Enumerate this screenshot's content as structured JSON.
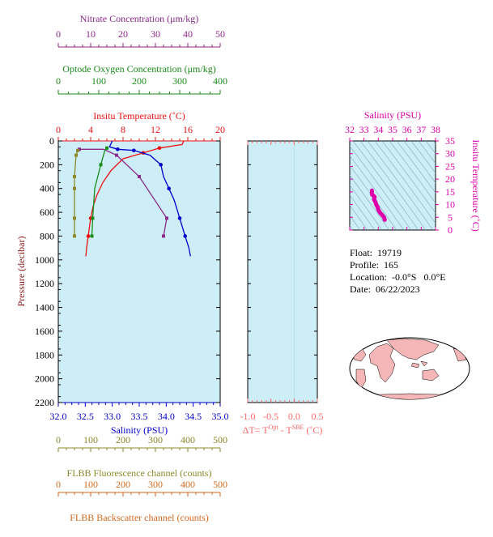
{
  "colors": {
    "nitrate": "#8b2a8b",
    "oxygen": "#1a8a1a",
    "temperature": "#ee1111",
    "salinity": "#0000cc",
    "fluorescence": "#8a8a2a",
    "backscatter": "#d2691e",
    "delta": "#ff6666",
    "ts": "#dd00aa",
    "panel": "#cdeef7",
    "land": "#f4b6b6"
  },
  "info": {
    "float_label": "Float:",
    "float_value": "19719",
    "profile_label": "Profile:",
    "profile_value": "165",
    "location_label": "Location:",
    "location_value": "-0.0°S   0.0°E",
    "date_label": "Date:",
    "date_value": "06/22/2023"
  },
  "chart_data": [
    {
      "type": "line",
      "id": "main-profile",
      "ylabel": "Pressure (decibar)",
      "ylim": [
        2200,
        0
      ],
      "yticks": [
        0,
        200,
        400,
        600,
        800,
        1000,
        1200,
        1400,
        1600,
        1800,
        2000,
        2200
      ],
      "axes": {
        "nitrate": {
          "label": "Nitrate Concentration (μm/kg)",
          "lim": [
            0,
            50
          ],
          "ticks": [
            "0",
            "10",
            "20",
            "30",
            "40",
            "50"
          ]
        },
        "oxygen": {
          "label": "Optode Oxygen Concentration (μm/kg)",
          "lim": [
            0,
            400
          ],
          "ticks": [
            "0",
            "100",
            "200",
            "300",
            "400"
          ]
        },
        "temperature": {
          "label": "Insitu Temperature (˚C)",
          "lim": [
            0,
            20
          ],
          "ticks": [
            "0",
            "4",
            "8",
            "12",
            "16",
            "20"
          ]
        },
        "salinity": {
          "label": "Salinity (PSU)",
          "lim": [
            32.0,
            35.0
          ],
          "ticks": [
            "32.0",
            "32.5",
            "33.0",
            "33.5",
            "34.0",
            "34.5",
            "35.0"
          ]
        },
        "fluorescence": {
          "label": "FLBB Fluorescence channel (counts)",
          "lim": [
            0,
            500
          ],
          "ticks": [
            "0",
            "100",
            "200",
            "300",
            "400",
            "500"
          ]
        },
        "backscatter": {
          "label": "FLBB Backscatter channel (counts)",
          "lim": [
            0,
            500
          ],
          "ticks": [
            "0",
            "100",
            "200",
            "300",
            "400",
            "500"
          ]
        }
      },
      "series": [
        {
          "name": "Insitu Temperature",
          "axis": "temperature",
          "x": [
            15.5,
            15.3,
            12.5,
            10.5,
            8.0,
            6.5,
            5.5,
            4.8,
            4.3,
            4.0,
            3.7,
            3.5,
            3.4
          ],
          "y": [
            0,
            30,
            60,
            100,
            150,
            250,
            350,
            450,
            550,
            650,
            800,
            900,
            970
          ],
          "markers": [
            60,
            100,
            650,
            800
          ]
        },
        {
          "name": "Salinity",
          "axis": "salinity",
          "x": [
            33.0,
            32.95,
            33.1,
            33.4,
            33.7,
            33.9,
            33.95,
            34.05,
            34.15,
            34.25,
            34.35,
            34.42,
            34.45
          ],
          "y": [
            0,
            50,
            70,
            80,
            120,
            200,
            300,
            400,
            500,
            650,
            800,
            900,
            970
          ],
          "markers": [
            70,
            80,
            200,
            400,
            650,
            800
          ]
        },
        {
          "name": "Nitrate Concentration",
          "axis": "nitrate",
          "x": [
            6.5,
            14.0,
            18.0,
            25.0,
            33.5,
            32.5
          ],
          "y": [
            70,
            70,
            120,
            300,
            650,
            800
          ],
          "markers": [
            70,
            120,
            300,
            650,
            800
          ]
        },
        {
          "name": "Optode Oxygen Concentration",
          "axis": "oxygen",
          "x": [
            120,
            115,
            105,
            90,
            85,
            83
          ],
          "y": [
            60,
            80,
            200,
            400,
            650,
            800
          ],
          "markers": [
            60,
            200,
            650,
            800
          ]
        },
        {
          "name": "FLBB Fluorescence channel",
          "axis": "fluorescence",
          "x": [
            60,
            55,
            50,
            50,
            50,
            50
          ],
          "y": [
            80,
            120,
            300,
            400,
            650,
            800
          ],
          "markers": [
            80,
            120,
            300,
            400,
            650,
            800
          ]
        }
      ]
    },
    {
      "type": "line",
      "id": "delta-t",
      "xlabel": "ΔT= T^Opt - T^SBE (˚C)",
      "xlim": [
        -1.0,
        0.5
      ],
      "xticks": [
        "-1.0",
        "-0.5",
        "0.0",
        "0.5"
      ],
      "ylim": [
        2200,
        0
      ],
      "series": []
    },
    {
      "type": "scatter",
      "id": "ts-diagram",
      "title": "Salinity (PSU)",
      "xlabel": "Salinity (PSU)",
      "ylabel": "Insitu Temperature (˚C)",
      "xlim": [
        32,
        38
      ],
      "ylim": [
        0,
        35
      ],
      "xticks": [
        "32",
        "33",
        "34",
        "35",
        "36",
        "37",
        "38"
      ],
      "yticks": [
        "0",
        "5",
        "10",
        "15",
        "20",
        "25",
        "30",
        "35"
      ],
      "series": [
        {
          "name": "T-S",
          "x": [
            34.45,
            34.4,
            34.25,
            34.1,
            34.0,
            33.95,
            33.85,
            33.8,
            33.7,
            33.75,
            33.55,
            33.55
          ],
          "y": [
            4.0,
            5.0,
            6.0,
            7.0,
            8.0,
            9.0,
            10.0,
            11.0,
            12.0,
            13.0,
            14.0,
            15.5
          ]
        }
      ]
    }
  ]
}
